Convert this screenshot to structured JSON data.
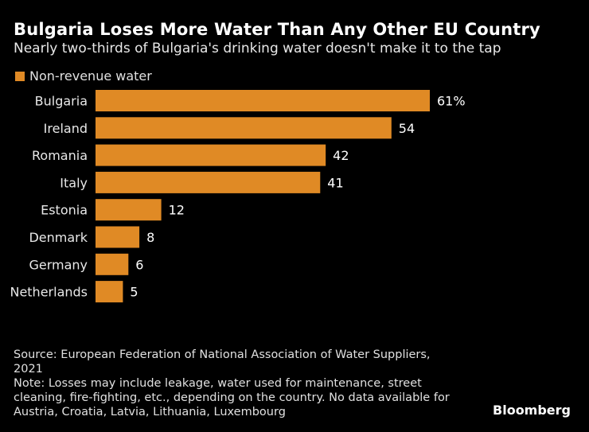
{
  "title": "Bulgaria Loses More Water Than Any Other EU Country",
  "subtitle": "Nearly two-thirds of Bulgaria's drinking water doesn't make it to the tap",
  "colors": {
    "bar": "#E08A25",
    "background": "#000000",
    "text": "#FFFFFF"
  },
  "chart_data": {
    "type": "bar",
    "orientation": "horizontal",
    "categories": [
      "Bulgaria",
      "Ireland",
      "Romania",
      "Italy",
      "Estonia",
      "Denmark",
      "Germany",
      "Netherlands"
    ],
    "series": [
      {
        "name": "Non-revenue water",
        "values": [
          61,
          54,
          42,
          41,
          12,
          8,
          6,
          5
        ]
      }
    ],
    "data_labels": [
      "61%",
      "54",
      "42",
      "41",
      "12",
      "8",
      "6",
      "5"
    ],
    "xlim": [
      0,
      61
    ],
    "grid": false,
    "legend_placement": "top-left"
  },
  "footer": {
    "source": "Source: European Federation of National Association of Water Suppliers, 2021",
    "note": "Note: Losses may include leakage, water used for maintenance, street cleaning, fire-fighting, etc., depending on the country. No data available for Austria, Croatia, Latvia, Lithuania, Luxembourg"
  },
  "logo": "Bloomberg"
}
